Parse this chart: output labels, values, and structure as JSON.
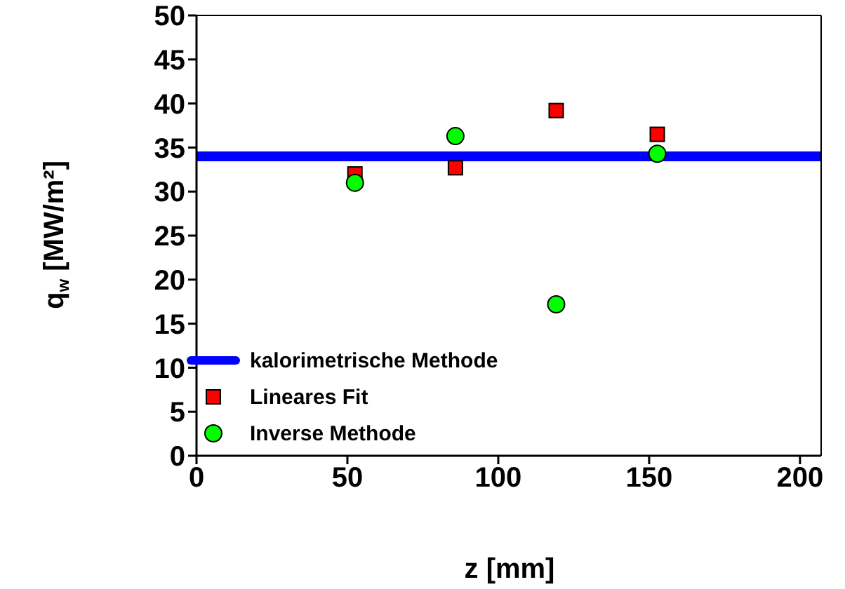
{
  "chart_data": {
    "type": "scatter",
    "xlabel": "z [mm]",
    "ylabel": "q$_{w}$ [MW/m²]",
    "xlim": [
      0,
      207
    ],
    "xticks": [
      0,
      50,
      100,
      150,
      200
    ],
    "ylim": [
      0,
      50
    ],
    "yticks": [
      0,
      5,
      10,
      15,
      20,
      25,
      30,
      35,
      40,
      45,
      50
    ],
    "grid": false,
    "legend": "bottom left",
    "series": [
      {
        "name": "kalorimetrische Methode",
        "type": "line",
        "color": "#0000ff",
        "x": [
          0,
          207
        ],
        "values": [
          34.0,
          34.0
        ],
        "marker": "none"
      },
      {
        "name": "Lineares Fit",
        "color": "#ff0000",
        "x": [
          52.5,
          85.8,
          119.2,
          152.7
        ],
        "values": [
          32.0,
          32.7,
          39.2,
          36.5
        ],
        "marker": "square"
      },
      {
        "name": "Inverse Methode",
        "color": "#00ff00",
        "x": [
          52.5,
          85.8,
          119.2,
          152.7
        ],
        "values": [
          31.0,
          36.3,
          17.2,
          34.3
        ],
        "marker": "circle"
      }
    ]
  }
}
